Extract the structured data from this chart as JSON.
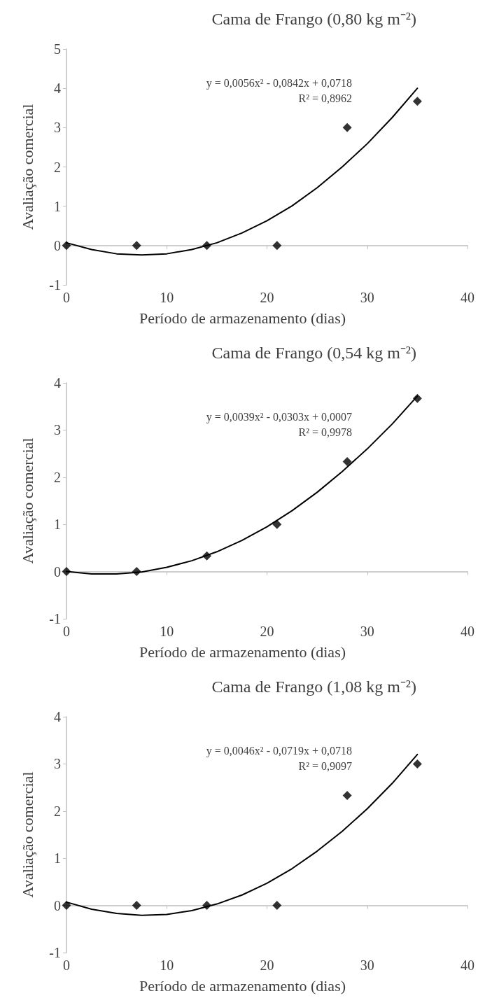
{
  "chart_data": [
    {
      "type": "scatter",
      "title": "Cama de Frango (0,80 kg m⁻²)",
      "xlabel": "Período de armazenamento (dias)",
      "ylabel": "Avaliação comercial",
      "annotations": [
        "y = 0,0056x² - 0,0842x + 0,0718",
        "R² = 0,8962"
      ],
      "xlim": [
        0,
        40
      ],
      "xticks": [
        0,
        10,
        20,
        30,
        40
      ],
      "ylim": [
        -1,
        5
      ],
      "yticks": [
        -1,
        0,
        1,
        2,
        3,
        4,
        5
      ],
      "series": [
        {
          "type": "scatter",
          "marker": "diamond",
          "color": "#000000",
          "x": [
            0,
            7,
            14,
            21,
            28,
            35
          ],
          "values": [
            0,
            0,
            0,
            0,
            3,
            3.67
          ]
        },
        {
          "type": "line",
          "marker": "none",
          "color": "#000000",
          "x": [
            0,
            2.5,
            5,
            7.5,
            10,
            12.5,
            15,
            17.5,
            20,
            22.5,
            25,
            27.5,
            30,
            32.5,
            35
          ],
          "values": [
            0.07,
            -0.1,
            -0.21,
            -0.24,
            -0.21,
            -0.1,
            0.07,
            0.32,
            0.63,
            1.01,
            1.47,
            2.0,
            2.59,
            3.26,
            4.0
          ]
        }
      ]
    },
    {
      "type": "scatter",
      "title": "Cama de Frango (0,54 kg m⁻²)",
      "xlabel": "Período de armazenamento (dias)",
      "ylabel": "Avaliação comercial",
      "annotations": [
        "y = 0,0039x² - 0,0303x + 0,0007",
        "R² = 0,9978"
      ],
      "xlim": [
        0,
        40
      ],
      "xticks": [
        0,
        10,
        20,
        30,
        40
      ],
      "ylim": [
        -1,
        4
      ],
      "yticks": [
        -1,
        0,
        1,
        2,
        3,
        4
      ],
      "series": [
        {
          "type": "scatter",
          "marker": "diamond",
          "color": "#000000",
          "x": [
            0,
            7,
            14,
            21,
            28,
            35
          ],
          "values": [
            0,
            0,
            0.33,
            1,
            2.33,
            3.67
          ]
        },
        {
          "type": "line",
          "marker": "none",
          "color": "#000000",
          "x": [
            0,
            2.5,
            5,
            7.5,
            10,
            12.5,
            15,
            17.5,
            20,
            22.5,
            25,
            27.5,
            30,
            32.5,
            35
          ],
          "values": [
            0,
            -0.05,
            -0.05,
            -0.01,
            0.09,
            0.23,
            0.42,
            0.66,
            0.95,
            1.29,
            1.68,
            2.12,
            2.6,
            3.13,
            3.72
          ]
        }
      ]
    },
    {
      "type": "scatter",
      "title": "Cama de Frango (1,08 kg m⁻²)",
      "xlabel": "Período de armazenamento (dias)",
      "ylabel": "Avaliação comercial",
      "annotations": [
        "y = 0,0046x² - 0,0719x + 0,0718",
        "R² = 0,9097"
      ],
      "xlim": [
        0,
        40
      ],
      "xticks": [
        0,
        10,
        20,
        30,
        40
      ],
      "ylim": [
        -1,
        4
      ],
      "yticks": [
        -1,
        0,
        1,
        2,
        3,
        4
      ],
      "series": [
        {
          "type": "scatter",
          "marker": "diamond",
          "color": "#000000",
          "x": [
            0,
            7,
            14,
            21,
            28,
            35
          ],
          "values": [
            0,
            0,
            0,
            0,
            2.33,
            3
          ]
        },
        {
          "type": "line",
          "marker": "none",
          "color": "#000000",
          "x": [
            0,
            2.5,
            5,
            7.5,
            10,
            12.5,
            15,
            17.5,
            20,
            22.5,
            25,
            27.5,
            30,
            32.5,
            35
          ],
          "values": [
            0.07,
            -0.08,
            -0.17,
            -0.21,
            -0.19,
            -0.11,
            0.03,
            0.22,
            0.47,
            0.78,
            1.15,
            1.57,
            2.05,
            2.59,
            3.2
          ]
        }
      ]
    }
  ]
}
